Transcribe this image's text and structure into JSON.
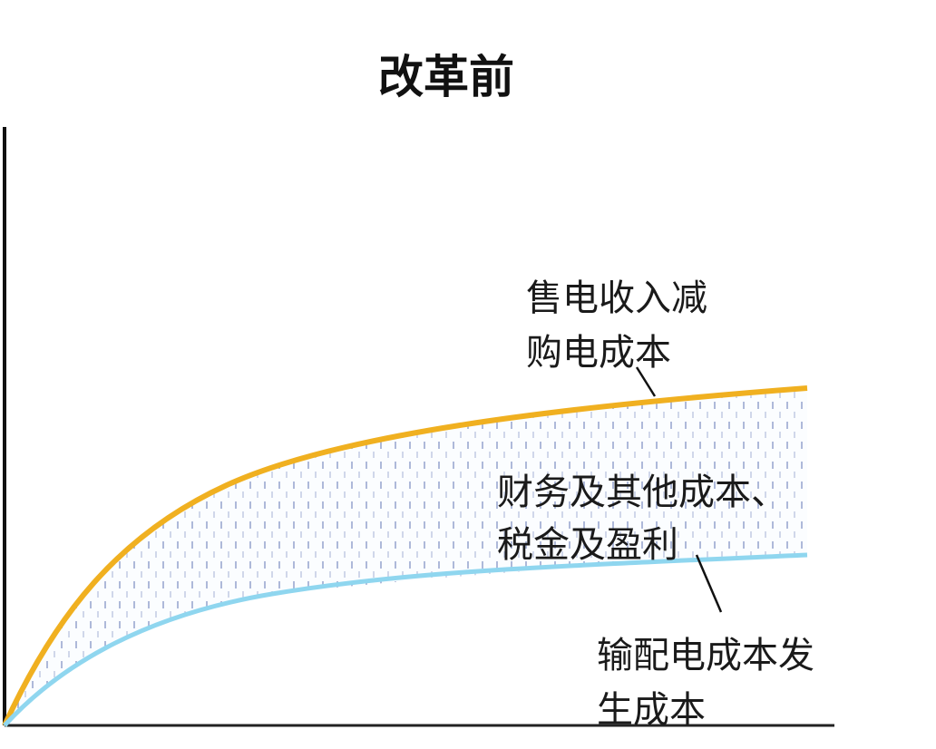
{
  "title": "改革前",
  "labels": {
    "revenue_minus_purchase": [
      "售电收入减",
      "购电成本"
    ],
    "finance_tax_profit": [
      "财务及其他成本、",
      "税金及盈利"
    ],
    "transmission_cost": [
      "输配电成本发",
      "生成本"
    ]
  },
  "colors": {
    "upper_curve": "#f0b020",
    "lower_curve": "#8fd6ef",
    "fill_hatch": "#9aa8d0",
    "axes": "#111111"
  }
}
